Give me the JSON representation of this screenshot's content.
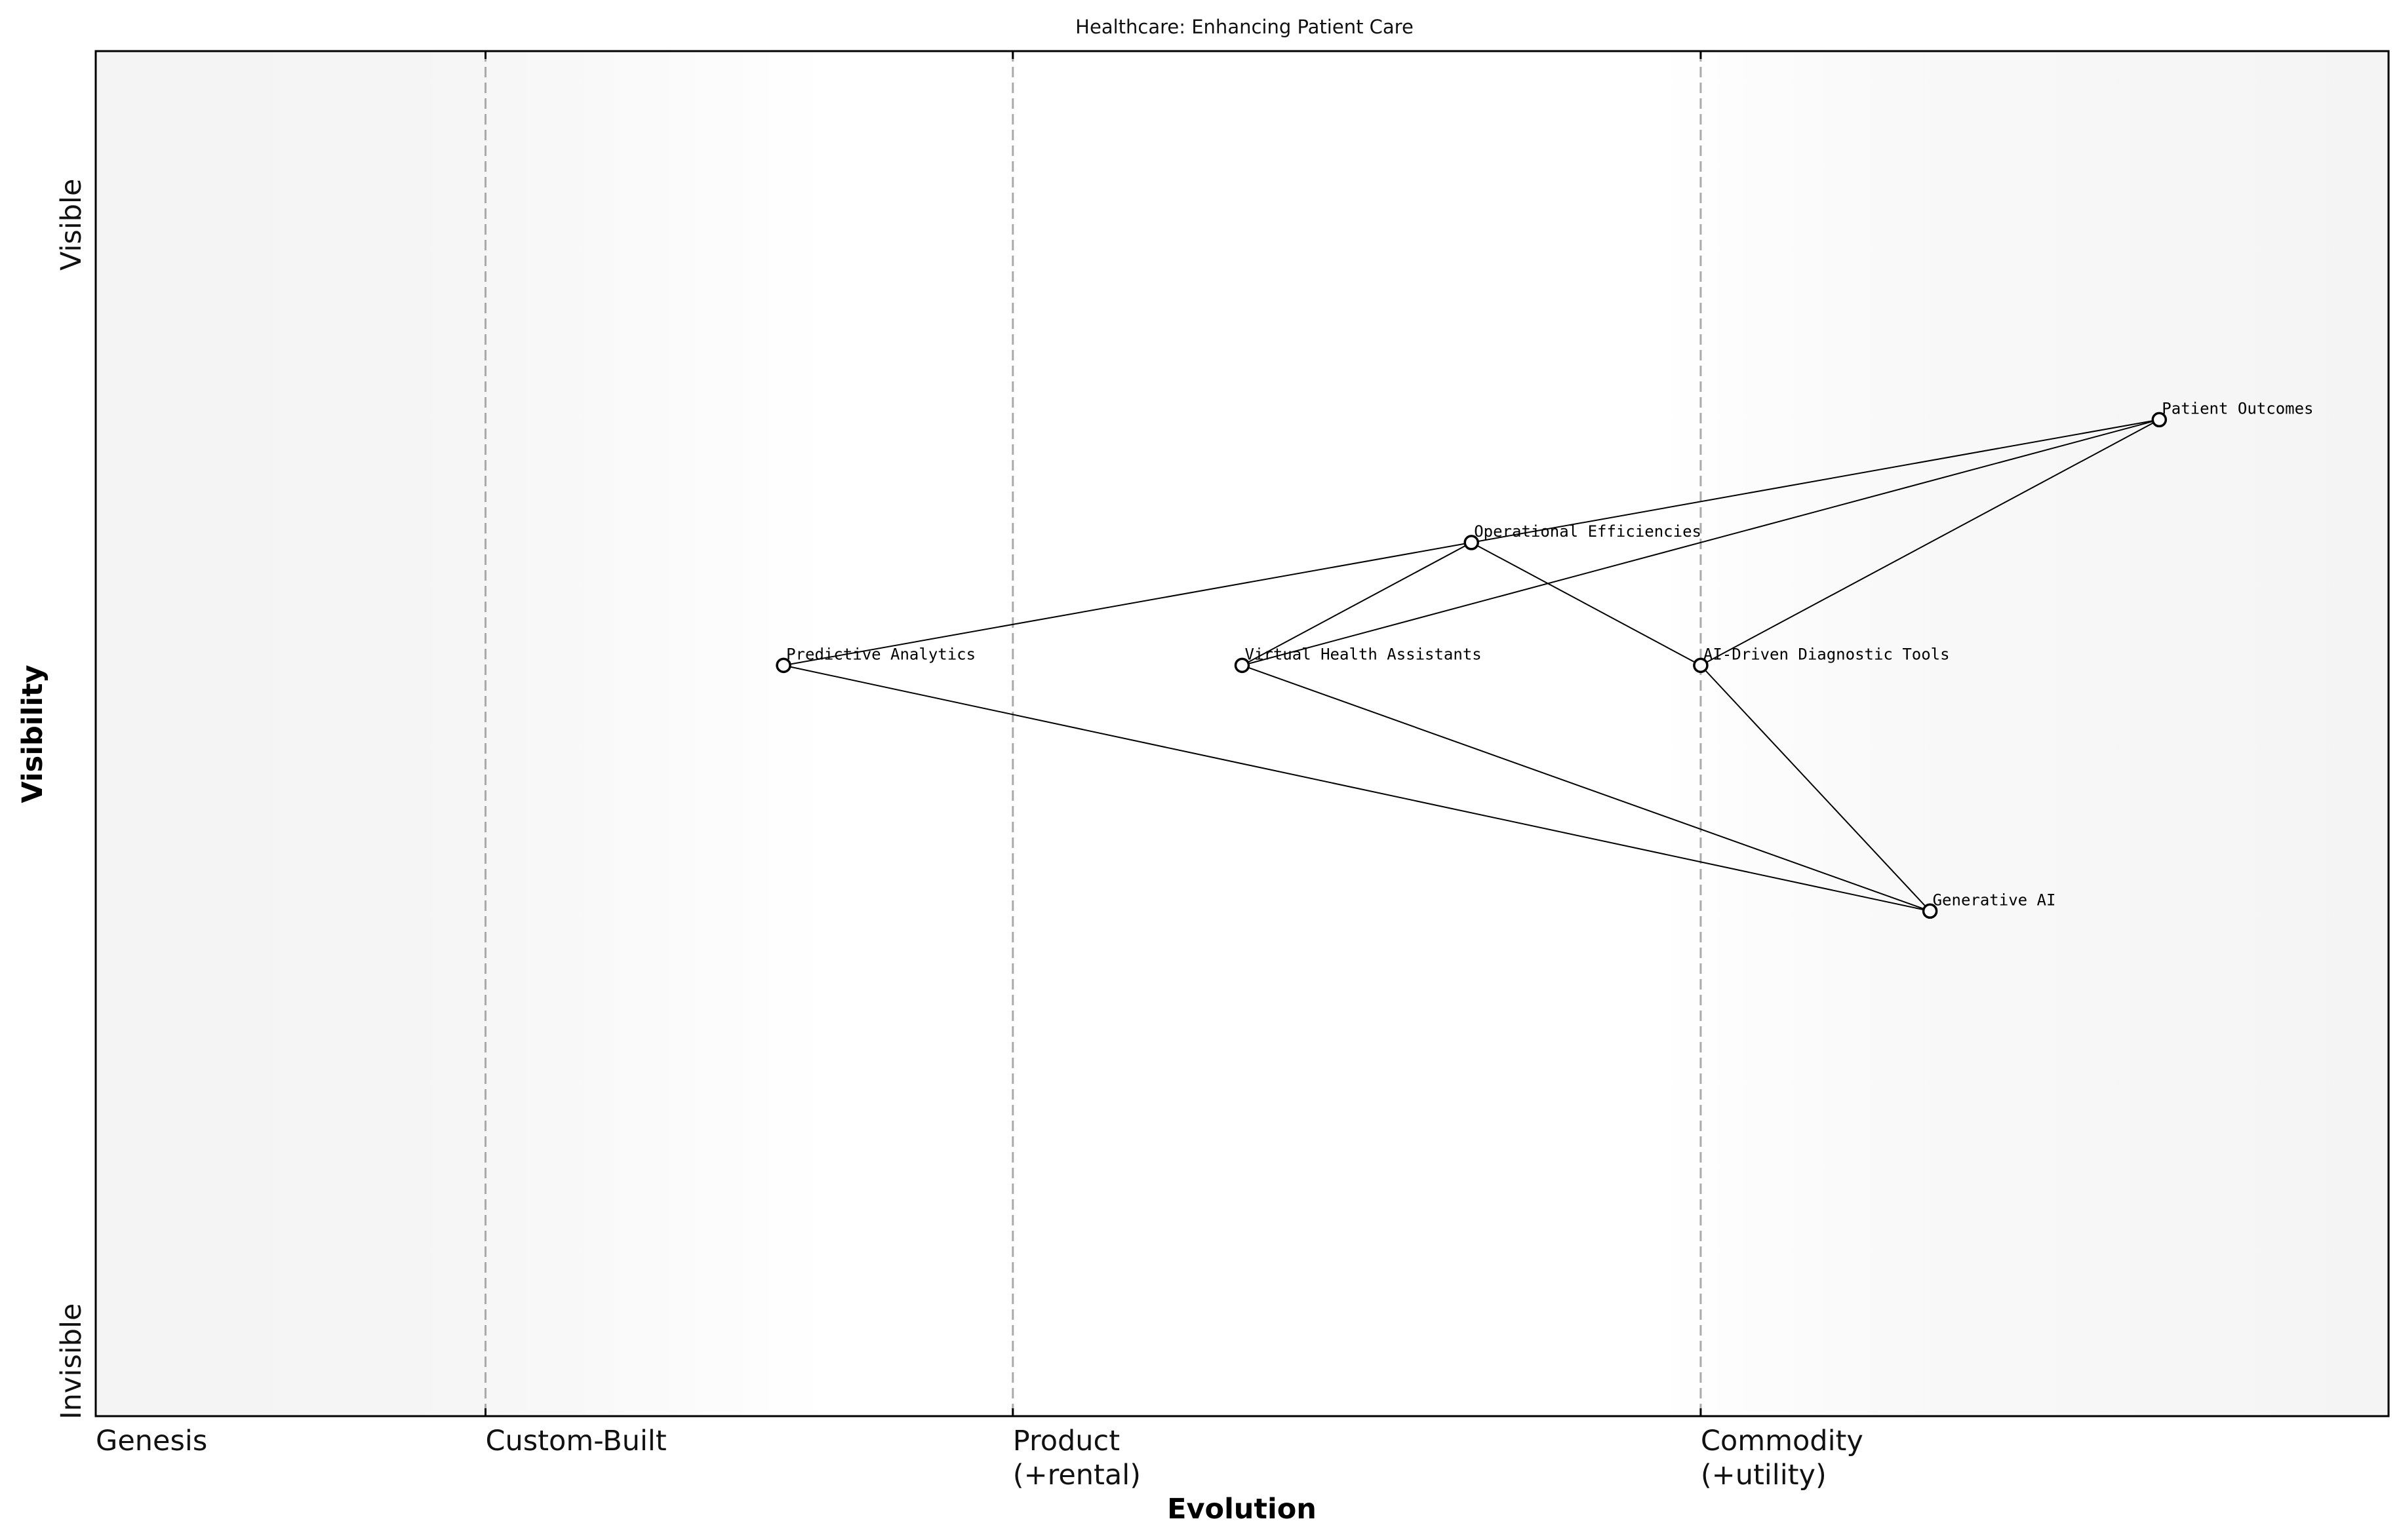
{
  "title": "Healthcare: Enhancing Patient Care",
  "axes": {
    "x_label": "Evolution",
    "y_label": "Visibility",
    "y_top": "Visible",
    "y_bottom": "Invisible"
  },
  "stages": [
    {
      "id": "genesis",
      "lines": [
        "Genesis"
      ],
      "x": 0.0
    },
    {
      "id": "custom-built",
      "lines": [
        "Custom-Built"
      ],
      "x": 0.17
    },
    {
      "id": "product",
      "lines": [
        "Product",
        "(+rental)"
      ],
      "x": 0.4
    },
    {
      "id": "commodity",
      "lines": [
        "Commodity",
        "(+utility)"
      ],
      "x": 0.7
    }
  ],
  "colors": {
    "frame": "#000000",
    "node_fill": "#ffffff",
    "link": "#000000",
    "stage_line": "#aaaaaa",
    "band_light": "#f4f4f4",
    "band_white": "#ffffff"
  },
  "chart_data": {
    "type": "wardley-map",
    "xlim": [
      0,
      1
    ],
    "ylim": [
      0,
      1
    ],
    "components": [
      {
        "id": "patient-outcomes",
        "name": "Patient Outcomes",
        "evolution": 0.9,
        "visibility": 0.73
      },
      {
        "id": "operational-efficiencies",
        "name": "Operational Efficiencies",
        "evolution": 0.6,
        "visibility": 0.64
      },
      {
        "id": "predictive-analytics",
        "name": "Predictive Analytics",
        "evolution": 0.3,
        "visibility": 0.55
      },
      {
        "id": "virtual-health-assistants",
        "name": "Virtual Health Assistants",
        "evolution": 0.5,
        "visibility": 0.55
      },
      {
        "id": "ai-driven-diagnostic-tools",
        "name": "AI-Driven Diagnostic Tools",
        "evolution": 0.7,
        "visibility": 0.55
      },
      {
        "id": "generative-ai",
        "name": "Generative AI",
        "evolution": 0.8,
        "visibility": 0.37
      }
    ],
    "links": [
      [
        "patient-outcomes",
        "operational-efficiencies"
      ],
      [
        "patient-outcomes",
        "virtual-health-assistants"
      ],
      [
        "patient-outcomes",
        "ai-driven-diagnostic-tools"
      ],
      [
        "operational-efficiencies",
        "predictive-analytics"
      ],
      [
        "operational-efficiencies",
        "virtual-health-assistants"
      ],
      [
        "operational-efficiencies",
        "ai-driven-diagnostic-tools"
      ],
      [
        "predictive-analytics",
        "generative-ai"
      ],
      [
        "virtual-health-assistants",
        "generative-ai"
      ],
      [
        "ai-driven-diagnostic-tools",
        "generative-ai"
      ]
    ]
  }
}
